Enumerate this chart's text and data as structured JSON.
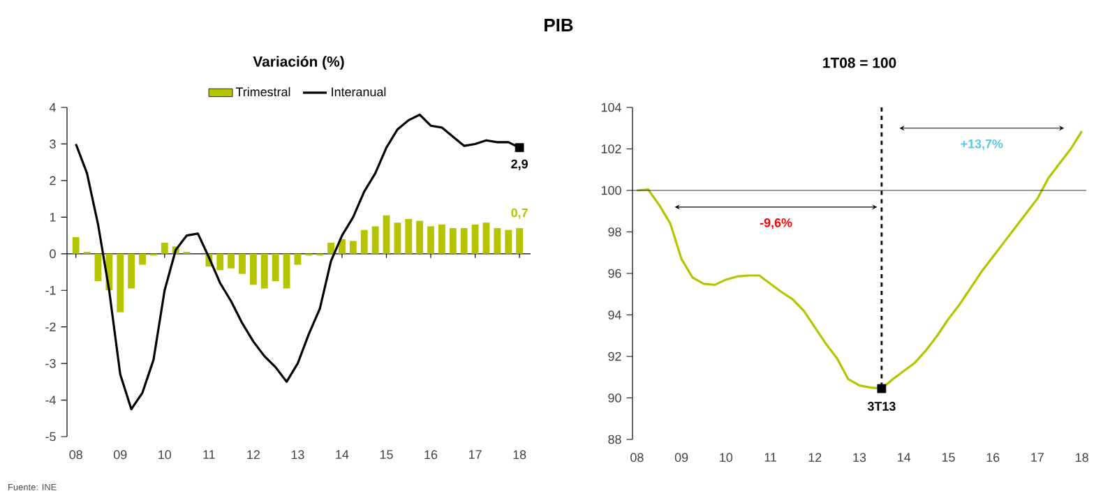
{
  "chart_data": [
    {
      "type": "bar",
      "title": "Variación (%)",
      "x": [
        8,
        8.25,
        8.5,
        8.75,
        9,
        9.25,
        9.5,
        9.75,
        10,
        10.25,
        10.5,
        10.75,
        11,
        11.25,
        11.5,
        11.75,
        12,
        12.25,
        12.5,
        12.75,
        13,
        13.25,
        13.5,
        13.75,
        14,
        14.25,
        14.5,
        14.75,
        15,
        15.25,
        15.5,
        15.75,
        16,
        16.25,
        16.5,
        16.75,
        17,
        17.25,
        17.5,
        17.75,
        18
      ],
      "xlim": [
        7.8,
        18.25
      ],
      "xticks": [
        {
          "value": 8,
          "label": "08"
        },
        {
          "value": 9,
          "label": "09"
        },
        {
          "value": 10,
          "label": "10"
        },
        {
          "value": 11,
          "label": "11"
        },
        {
          "value": 12,
          "label": "12"
        },
        {
          "value": 13,
          "label": "13"
        },
        {
          "value": 14,
          "label": "14"
        },
        {
          "value": 15,
          "label": "15"
        },
        {
          "value": 16,
          "label": "16"
        },
        {
          "value": 17,
          "label": "17"
        },
        {
          "value": 18,
          "label": "18"
        }
      ],
      "ylim": [
        -5,
        4
      ],
      "yticks": [
        -5,
        -4,
        -3,
        -2,
        -1,
        0,
        1,
        2,
        3,
        4
      ],
      "legend": "top",
      "series": [
        {
          "name": "Trimestral",
          "type": "bar",
          "color": "#b5c400",
          "values": [
            0.45,
            0.05,
            -0.75,
            -1.0,
            -1.6,
            -0.95,
            -0.3,
            -0.05,
            0.3,
            0.2,
            0.05,
            0.0,
            -0.35,
            -0.45,
            -0.4,
            -0.55,
            -0.85,
            -0.95,
            -0.75,
            -0.95,
            -0.3,
            -0.05,
            -0.05,
            0.3,
            0.4,
            0.35,
            0.65,
            0.75,
            1.05,
            0.85,
            0.95,
            0.9,
            0.75,
            0.8,
            0.7,
            0.7,
            0.8,
            0.85,
            0.7,
            0.65,
            0.7
          ],
          "value_labels": [
            null,
            null,
            null,
            null,
            null,
            null,
            null,
            null,
            null,
            null,
            null,
            null,
            null,
            null,
            null,
            null,
            null,
            null,
            null,
            null,
            null,
            null,
            null,
            null,
            null,
            null,
            null,
            null,
            null,
            null,
            null,
            null,
            null,
            null,
            null,
            null,
            null,
            null,
            null,
            null,
            "0,7"
          ]
        },
        {
          "name": "Interanual",
          "type": "line",
          "color": "#000000",
          "values": [
            3.0,
            2.2,
            0.8,
            -1.0,
            -3.3,
            -4.25,
            -3.8,
            -2.9,
            -1.0,
            0.1,
            0.5,
            0.55,
            -0.1,
            -0.8,
            -1.3,
            -1.9,
            -2.4,
            -2.8,
            -3.1,
            -3.5,
            -3.0,
            -2.2,
            -1.5,
            -0.2,
            0.5,
            1.0,
            1.7,
            2.2,
            2.9,
            3.4,
            3.65,
            3.8,
            3.5,
            3.45,
            3.2,
            2.95,
            3.0,
            3.1,
            3.05,
            3.05,
            2.9
          ],
          "value_labels": [
            null,
            null,
            null,
            null,
            null,
            null,
            null,
            null,
            null,
            null,
            null,
            null,
            null,
            null,
            null,
            null,
            null,
            null,
            null,
            null,
            null,
            null,
            null,
            null,
            null,
            null,
            null,
            null,
            null,
            null,
            null,
            null,
            null,
            null,
            null,
            null,
            null,
            null,
            null,
            null,
            "2,9"
          ]
        }
      ],
      "annotations": [
        "PIB",
        "Fuente: INE"
      ]
    },
    {
      "type": "line",
      "title": "1T08 = 100",
      "x": [
        8,
        8.25,
        8.5,
        8.75,
        9,
        9.25,
        9.5,
        9.75,
        10,
        10.25,
        10.5,
        10.75,
        11,
        11.25,
        11.5,
        11.75,
        12,
        12.25,
        12.5,
        12.75,
        13,
        13.25,
        13.5,
        13.75,
        14,
        14.25,
        14.5,
        14.75,
        15,
        15.25,
        15.5,
        15.75,
        16,
        16.25,
        16.5,
        16.75,
        17,
        17.25,
        17.5,
        17.75,
        18
      ],
      "xlim": [
        7.9,
        18.1
      ],
      "xticks": [
        {
          "value": 8,
          "label": "08"
        },
        {
          "value": 9,
          "label": "09"
        },
        {
          "value": 10,
          "label": "10"
        },
        {
          "value": 11,
          "label": "11"
        },
        {
          "value": 12,
          "label": "12"
        },
        {
          "value": 13,
          "label": "13"
        },
        {
          "value": 14,
          "label": "14"
        },
        {
          "value": 15,
          "label": "15"
        },
        {
          "value": 16,
          "label": "16"
        },
        {
          "value": 17,
          "label": "17"
        },
        {
          "value": 18,
          "label": "18"
        }
      ],
      "ylim": [
        88,
        104
      ],
      "yticks": [
        88,
        90,
        92,
        94,
        96,
        98,
        100,
        102,
        104
      ],
      "series": [
        {
          "color": "#b5c400",
          "values": [
            100.0,
            100.05,
            99.3,
            98.4,
            96.7,
            95.8,
            95.5,
            95.45,
            95.7,
            95.85,
            95.9,
            95.9,
            95.5,
            95.1,
            94.75,
            94.2,
            93.4,
            92.6,
            91.9,
            90.9,
            90.6,
            90.5,
            90.45,
            90.9,
            91.3,
            91.7,
            92.3,
            93.0,
            93.8,
            94.5,
            95.3,
            96.1,
            96.8,
            97.5,
            98.2,
            98.9,
            99.6,
            100.6,
            101.3,
            102.0,
            102.85
          ]
        },
        {
          "type": "scatter",
          "color": "#000000",
          "marker": "square",
          "x": [
            13.5
          ],
          "values": [
            90.45
          ]
        }
      ],
      "ref_lines": [
        {
          "axis": "x",
          "value": 13.5,
          "line_style": "dashed",
          "color": "#000000"
        },
        {
          "axis": "y",
          "value": 100,
          "color": "#000000"
        }
      ],
      "annotations": [
        {
          "text": "3T13",
          "x": 13.5,
          "y": 90.45
        },
        "-9,6%",
        "+13,7%"
      ]
    }
  ]
}
